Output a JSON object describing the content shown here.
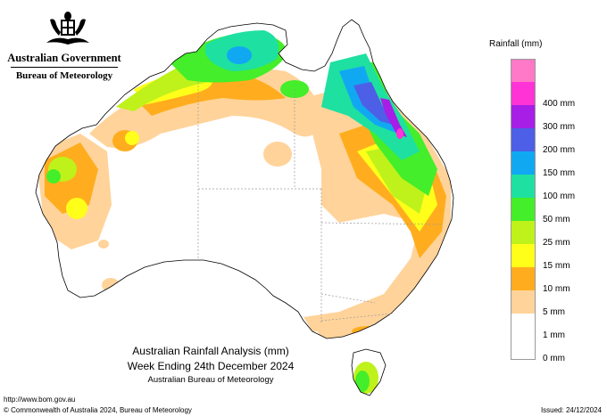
{
  "branding": {
    "government": "Australian Government",
    "bureau": "Bureau of Meteorology"
  },
  "legend": {
    "title": "Rainfall (mm)",
    "items": [
      {
        "color": "#ff79c6",
        "label": ""
      },
      {
        "color": "#ff33d6",
        "label": "400 mm"
      },
      {
        "color": "#a71ee6",
        "label": "300 mm"
      },
      {
        "color": "#4d5fe6",
        "label": "200 mm"
      },
      {
        "color": "#11a8f2",
        "label": "150 mm"
      },
      {
        "color": "#1ee0a0",
        "label": "100 mm"
      },
      {
        "color": "#44ee2a",
        "label": "50 mm"
      },
      {
        "color": "#bff21a",
        "label": "25 mm"
      },
      {
        "color": "#ffff1a",
        "label": "15 mm"
      },
      {
        "color": "#ffad1e",
        "label": "10 mm"
      },
      {
        "color": "#ffd39a",
        "label": "5 mm"
      },
      {
        "color": "#ffffff",
        "label": "1 mm"
      },
      {
        "color": "#ffffff",
        "label": "0 mm"
      }
    ]
  },
  "titles": {
    "line1": "Australian Rainfall Analysis (mm)",
    "line2": "Week Ending 24th December 2024",
    "line3": "Australian Bureau of Meteorology"
  },
  "footer": {
    "url": "http://www.bom.gov.au",
    "copyright": "© Commonwealth of Australia 2024, Bureau of Meteorology",
    "issued": "Issued: 24/12/2024"
  },
  "colors": {
    "coast": "#000000",
    "state_border": "#9a9a9a",
    "nodata": "#ffffff"
  }
}
